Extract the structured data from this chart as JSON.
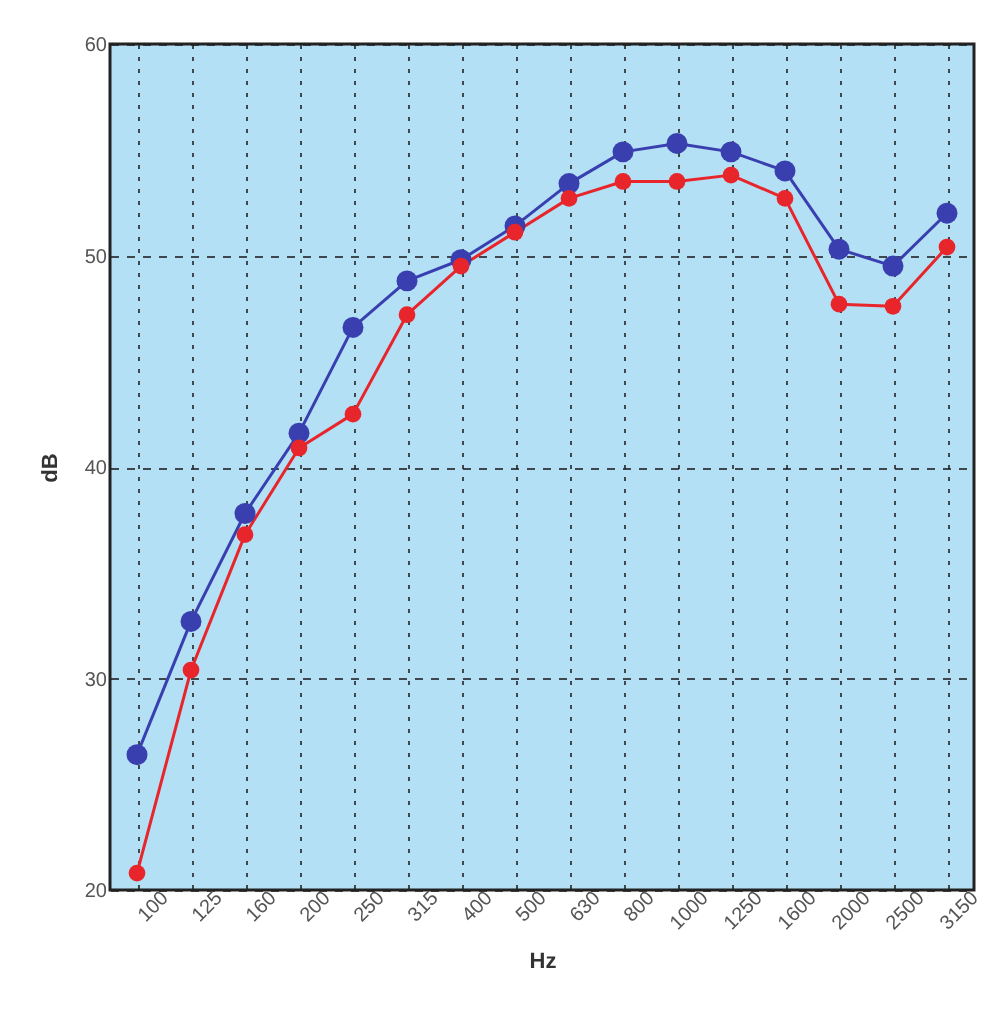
{
  "chart_data": {
    "type": "line",
    "xlabel": "Hz",
    "ylabel": "dB",
    "categories": [
      "100",
      "125",
      "160",
      "200",
      "250",
      "315",
      "400",
      "500",
      "630",
      "800",
      "1000",
      "1250",
      "1600",
      "2000",
      "2500",
      "3150"
    ],
    "series": [
      {
        "color": "#3a3fb0",
        "values": [
          26.4,
          32.7,
          37.8,
          41.6,
          46.6,
          48.8,
          49.8,
          51.4,
          53.4,
          54.9,
          55.3,
          54.9,
          54.0,
          50.3,
          49.5,
          52.0
        ]
      },
      {
        "color": "#e8252b",
        "values": [
          20.8,
          30.4,
          36.8,
          40.9,
          42.5,
          47.2,
          49.5,
          51.1,
          52.7,
          53.5,
          53.5,
          53.8,
          52.7,
          47.7,
          47.6,
          50.4
        ]
      }
    ],
    "ylim": [
      20,
      60
    ],
    "yticks": [
      20,
      30,
      40,
      50,
      60
    ],
    "grid": true,
    "marker": "circle",
    "line_style": "solid",
    "legend": false
  }
}
